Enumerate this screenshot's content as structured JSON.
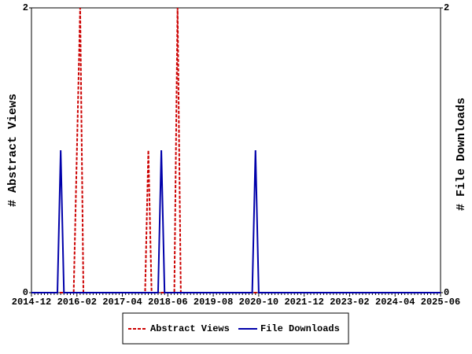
{
  "chart_data": {
    "type": "line",
    "y_label": "# Abstract Views",
    "y2_label": "# File Downloads",
    "categories": [
      "2014-12",
      null,
      null,
      null,
      null,
      null,
      null,
      null,
      null,
      null,
      null,
      null,
      null,
      null,
      "2016-02",
      null,
      null,
      null,
      null,
      null,
      null,
      null,
      null,
      null,
      null,
      null,
      null,
      null,
      "2017-04",
      null,
      null,
      null,
      null,
      null,
      null,
      null,
      null,
      null,
      null,
      null,
      null,
      null,
      "2018-06",
      null,
      null,
      null,
      null,
      null,
      null,
      null,
      null,
      null,
      null,
      null,
      null,
      null,
      "2019-08",
      null,
      null,
      null,
      null,
      null,
      null,
      null,
      null,
      null,
      null,
      null,
      null,
      null,
      "2020-10",
      null,
      null,
      null,
      null,
      null,
      null,
      null,
      null,
      null,
      null,
      null,
      null,
      null,
      "2021-12",
      null,
      null,
      null,
      null,
      null,
      null,
      null,
      null,
      null,
      null,
      null,
      null,
      null,
      "2023-02",
      null,
      null,
      null,
      null,
      null,
      null,
      null,
      null,
      null,
      null,
      null,
      null,
      null,
      "2024-04",
      null,
      null,
      null,
      null,
      null,
      null,
      null,
      null,
      null,
      null,
      null,
      null,
      null,
      "2025-06"
    ],
    "series": [
      {
        "name": "Abstract Views",
        "color": "#cc0000",
        "dashed": true,
        "values": [
          0,
          0,
          0,
          0,
          0,
          0,
          0,
          0,
          0,
          0,
          0,
          0,
          0,
          0,
          1,
          2,
          0,
          0,
          0,
          0,
          0,
          0,
          0,
          0,
          0,
          0,
          0,
          0,
          0,
          0,
          0,
          0,
          0,
          0,
          0,
          0,
          1,
          0,
          0,
          0,
          0,
          0,
          0,
          0,
          0,
          2,
          0,
          0,
          0,
          0,
          0,
          0,
          0,
          0,
          0,
          0,
          0,
          0,
          0,
          0,
          0,
          0,
          0,
          0,
          0,
          0,
          0,
          0,
          0,
          0,
          0,
          0,
          0,
          0,
          0,
          0,
          0,
          0,
          0,
          0,
          0,
          0,
          0,
          0,
          0,
          0,
          0,
          0,
          0,
          0,
          0,
          0,
          0,
          0,
          0,
          0,
          0,
          0,
          0,
          0,
          0,
          0,
          0,
          0,
          0,
          0,
          0,
          0,
          0,
          0,
          0,
          0,
          0,
          0,
          0,
          0,
          0,
          0,
          0,
          0,
          0,
          0,
          0,
          0,
          0,
          0,
          0
        ]
      },
      {
        "name": "File Downloads",
        "color": "#0000aa",
        "axis": "y2",
        "values": [
          0,
          0,
          0,
          0,
          0,
          0,
          0,
          0,
          0,
          1,
          0,
          0,
          0,
          0,
          0,
          0,
          0,
          0,
          0,
          0,
          0,
          0,
          0,
          0,
          0,
          0,
          0,
          0,
          0,
          0,
          0,
          0,
          0,
          0,
          0,
          0,
          0,
          0,
          0,
          0,
          1,
          0,
          0,
          0,
          0,
          0,
          0,
          0,
          0,
          0,
          0,
          0,
          0,
          0,
          0,
          0,
          0,
          0,
          0,
          0,
          0,
          0,
          0,
          0,
          0,
          0,
          0,
          0,
          0,
          1,
          0,
          0,
          0,
          0,
          0,
          0,
          0,
          0,
          0,
          0,
          0,
          0,
          0,
          0,
          0,
          0,
          0,
          0,
          0,
          0,
          0,
          0,
          0,
          0,
          0,
          0,
          0,
          0,
          0,
          0,
          0,
          0,
          0,
          0,
          0,
          0,
          0,
          0,
          0,
          0,
          0,
          0,
          0,
          0,
          0,
          0,
          0,
          0,
          0,
          0,
          0,
          0,
          0,
          0,
          0,
          0,
          0
        ]
      }
    ],
    "ylim": [
      0,
      2
    ],
    "yticks": [
      0,
      2
    ],
    "y2lim": [
      0,
      2
    ],
    "y2ticks": [
      0,
      2
    ],
    "legend": "bottom"
  }
}
